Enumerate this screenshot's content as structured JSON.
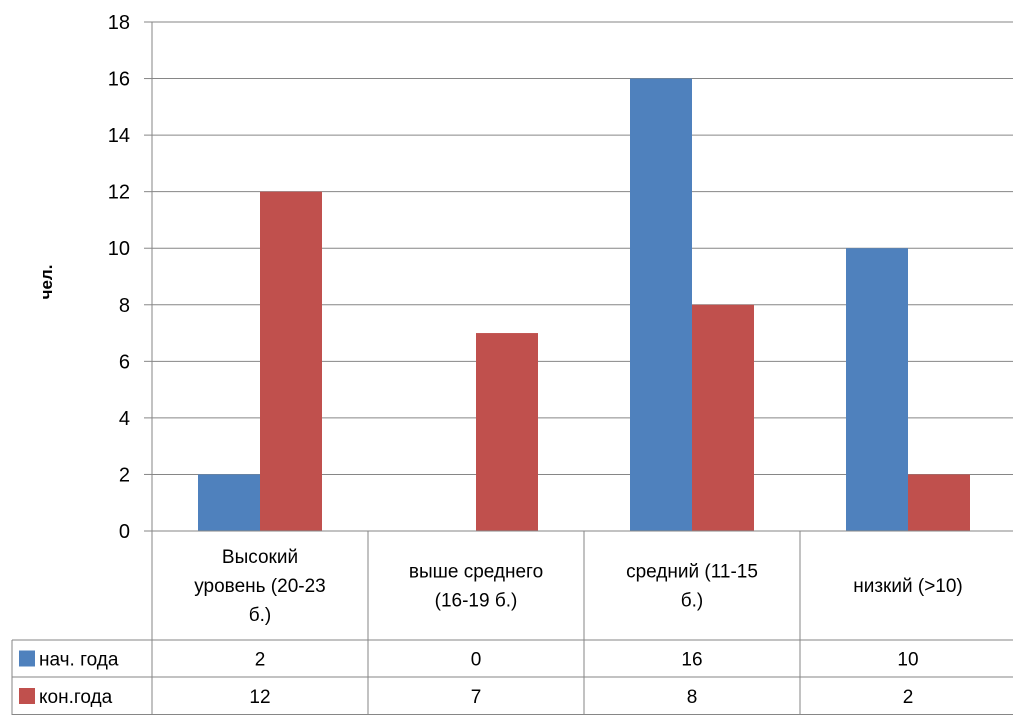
{
  "chart_data": {
    "type": "bar",
    "title": "",
    "xlabel": "",
    "ylabel": "чел.",
    "ylim": [
      0,
      18
    ],
    "yticks": [
      0,
      2,
      4,
      6,
      8,
      10,
      12,
      14,
      16,
      18
    ],
    "grid": true,
    "legend": "data-table",
    "categories": [
      [
        "Высокий",
        "уровень (20-23",
        "б.)"
      ],
      [
        "выше среднего",
        "(16-19 б.)"
      ],
      [
        "средний (11-15",
        "б.)"
      ],
      [
        "низкий (>10)"
      ]
    ],
    "series": [
      {
        "name": "нач. года",
        "color": "#4F81BD",
        "values": [
          2,
          0,
          16,
          10
        ]
      },
      {
        "name": "кон.года",
        "color": "#C0504D",
        "values": [
          12,
          7,
          8,
          2
        ]
      }
    ]
  },
  "colors": {
    "grid": "#868686",
    "border": "#868686"
  }
}
